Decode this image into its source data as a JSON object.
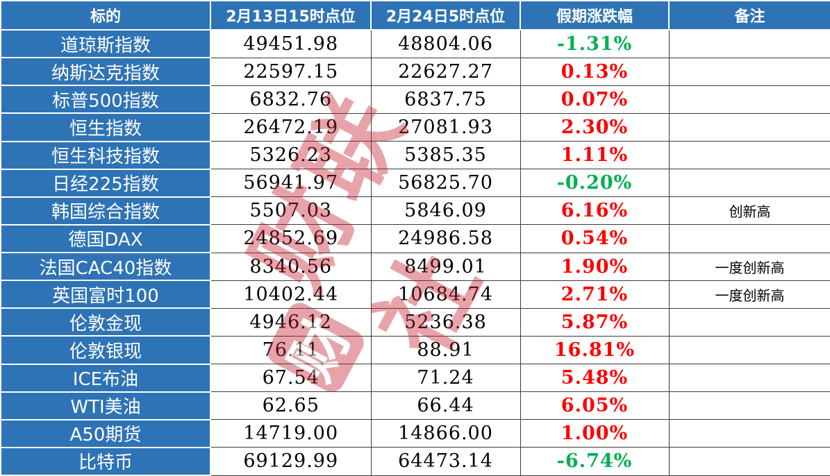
{
  "chart_data": {
    "type": "table",
    "columns": [
      "标的",
      "2月13日15时点位",
      "2月24日5时点位",
      "假期涨跌幅",
      "备注"
    ],
    "rows": [
      [
        "道琼斯指数",
        "49451.98",
        "48804.06",
        "-1.31%",
        ""
      ],
      [
        "纳斯达克指数",
        "22597.15",
        "22627.27",
        "0.13%",
        ""
      ],
      [
        "标普500指数",
        "6832.76",
        "6837.75",
        "0.07%",
        ""
      ],
      [
        "恒生指数",
        "26472.19",
        "27081.93",
        "2.30%",
        ""
      ],
      [
        "恒生科技指数",
        "5326.23",
        "5385.35",
        "1.11%",
        ""
      ],
      [
        "日经225指数",
        "56941.97",
        "56825.70",
        "-0.20%",
        ""
      ],
      [
        "韩国综合指数",
        "5507.03",
        "5846.09",
        "6.16%",
        "创新高"
      ],
      [
        "德国DAX",
        "24852.69",
        "24986.58",
        "0.54%",
        ""
      ],
      [
        "法国CAC40指数",
        "8340.56",
        "8499.01",
        "1.90%",
        "一度创新高"
      ],
      [
        "英国富时100",
        "10402.44",
        "10684.74",
        "2.71%",
        "一度创新高"
      ],
      [
        "伦敦金现",
        "4946.12",
        "5236.38",
        "5.87%",
        ""
      ],
      [
        "伦敦银现",
        "76.11",
        "88.91",
        "16.81%",
        ""
      ],
      [
        "ICE布油",
        "67.54",
        "71.24",
        "5.48%",
        ""
      ],
      [
        "WTI美油",
        "62.65",
        "66.44",
        "6.05%",
        ""
      ],
      [
        "A50期货",
        "14719.00",
        "14866.00",
        "1.00%",
        ""
      ],
      [
        "比特币",
        "69129.99",
        "64473.14",
        "-6.74%",
        ""
      ]
    ]
  },
  "watermark": {
    "logo_char": "财",
    "text": "财联社"
  },
  "colors": {
    "header_bg": "#2E73B5",
    "up": "#FE0000",
    "down": "#00B050",
    "watermark": "#C21F2C"
  }
}
